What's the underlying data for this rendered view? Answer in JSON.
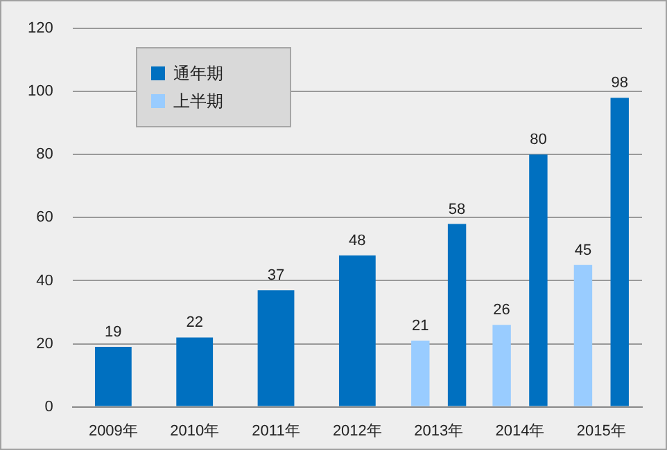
{
  "chart_data": {
    "type": "bar",
    "categories": [
      "2009年",
      "2010年",
      "2011年",
      "2012年",
      "2013年",
      "2014年",
      "2015年"
    ],
    "series": [
      {
        "name": "通年期",
        "color": "#0070c0",
        "values": [
          19,
          22,
          37,
          48,
          58,
          80,
          98
        ]
      },
      {
        "name": "上半期",
        "color": "#99ccff",
        "values": [
          null,
          null,
          null,
          null,
          21,
          26,
          45
        ]
      }
    ],
    "ylim": [
      0,
      120
    ],
    "yticks": [
      0,
      20,
      40,
      60,
      80,
      100,
      120
    ],
    "grid": "y",
    "legend": "top left",
    "data_labels": true
  }
}
